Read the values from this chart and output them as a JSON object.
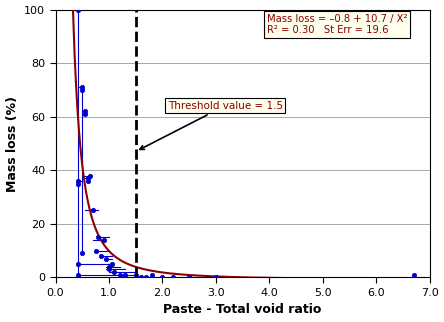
{
  "title": "",
  "xlabel": "Paste - Total void ratio",
  "ylabel": "Mass loss (%)",
  "xlim": [
    0.0,
    7.0
  ],
  "ylim": [
    0,
    100
  ],
  "xticks": [
    0.0,
    1.0,
    2.0,
    3.0,
    4.0,
    5.0,
    6.0,
    7.0
  ],
  "yticks": [
    0,
    20,
    40,
    60,
    80,
    100
  ],
  "threshold_x": 1.5,
  "equation_line1": "Mass loss = -0.8 + 10.7 / X",
  "equation_line2": "R² = 0.30   St Err = 19.6",
  "threshold_label": "Threshold value = 1.5",
  "scatter_x": [
    0.42,
    0.42,
    0.42,
    0.42,
    0.42,
    0.5,
    0.5,
    0.5,
    0.55,
    0.55,
    0.6,
    0.6,
    0.65,
    0.7,
    0.75,
    0.8,
    0.85,
    0.9,
    0.95,
    1.0,
    1.0,
    1.05,
    1.1,
    1.2,
    1.3,
    1.5,
    1.6,
    1.7,
    1.8,
    2.0,
    2.2,
    2.5,
    3.0,
    6.7
  ],
  "scatter_y": [
    100,
    36,
    35,
    5,
    1,
    71,
    70,
    9,
    62,
    61,
    37,
    36,
    38,
    25,
    10,
    15,
    8,
    14,
    7,
    4,
    3,
    5,
    2,
    1,
    1,
    1,
    0,
    0,
    1,
    0,
    0,
    0,
    0,
    1
  ],
  "blue": "#0000cd",
  "dark_red": "#8b0000",
  "bg_color": "#ffffff",
  "box_bg": "#fffff0",
  "connecting_lines": [
    {
      "x": [
        0.42,
        0.42
      ],
      "y": [
        1,
        100
      ]
    },
    {
      "x": [
        0.5,
        0.5
      ],
      "y": [
        9,
        71
      ]
    },
    {
      "x": [
        0.55,
        0.55
      ],
      "y": [
        61,
        62
      ]
    },
    {
      "x": [
        0.6,
        0.6
      ],
      "y": [
        36,
        37
      ]
    },
    {
      "x": [
        0.42,
        0.5
      ],
      "y": [
        36,
        36
      ]
    },
    {
      "x": [
        0.42,
        0.5
      ],
      "y": [
        71,
        71
      ]
    },
    {
      "x": [
        0.5,
        0.55
      ],
      "y": [
        62,
        62
      ]
    },
    {
      "x": [
        0.5,
        0.55
      ],
      "y": [
        61,
        61
      ]
    },
    {
      "x": [
        0.5,
        0.6
      ],
      "y": [
        37,
        37
      ]
    },
    {
      "x": [
        0.5,
        0.65
      ],
      "y": [
        38,
        38
      ]
    },
    {
      "x": [
        0.42,
        1.0
      ],
      "y": [
        5,
        5
      ]
    },
    {
      "x": [
        0.42,
        1.5
      ],
      "y": [
        1,
        1
      ]
    },
    {
      "x": [
        0.55,
        0.8
      ],
      "y": [
        25,
        25
      ]
    },
    {
      "x": [
        0.7,
        0.9
      ],
      "y": [
        14,
        14
      ]
    },
    {
      "x": [
        0.75,
        1.0
      ],
      "y": [
        10,
        10
      ]
    },
    {
      "x": [
        0.8,
        1.0
      ],
      "y": [
        15,
        15
      ]
    },
    {
      "x": [
        0.85,
        1.05
      ],
      "y": [
        8,
        8
      ]
    },
    {
      "x": [
        0.9,
        1.05
      ],
      "y": [
        7,
        7
      ]
    },
    {
      "x": [
        0.95,
        1.2
      ],
      "y": [
        4,
        4
      ]
    },
    {
      "x": [
        0.95,
        1.3
      ],
      "y": [
        3,
        3
      ]
    },
    {
      "x": [
        1.0,
        1.5
      ],
      "y": [
        2,
        2
      ]
    }
  ]
}
